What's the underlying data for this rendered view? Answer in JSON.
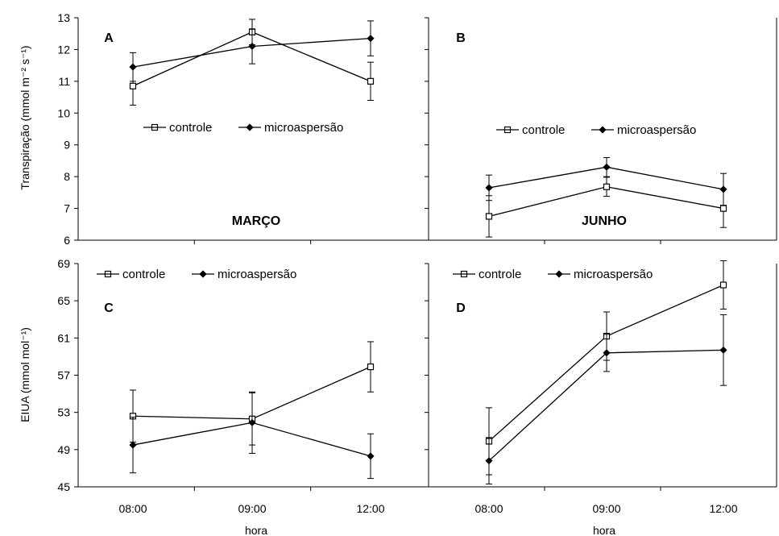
{
  "figure": {
    "xlabel": "hora",
    "ylabel_top": "Transpiração (mmol m⁻² s⁻¹)",
    "ylabel_bottom": "EIUA (mmol mol⁻¹)",
    "month_march": "MARÇO",
    "month_june": "JUNHO"
  },
  "colors": {
    "axis": "#000000",
    "line": "#000000",
    "open_marker_fill": "#ffffff",
    "closed_marker_fill": "#000000"
  },
  "chart_data": [
    {
      "panel": "A",
      "type": "line",
      "categories": [
        "08:00",
        "09:00",
        "12:00"
      ],
      "ylim": [
        6,
        13
      ],
      "yticks": [
        6,
        7,
        8,
        9,
        10,
        11,
        12,
        13
      ],
      "legend": "middle",
      "series": [
        {
          "name": "controle",
          "marker": "open-square",
          "values": [
            10.85,
            12.55,
            11.0
          ],
          "err": [
            0.6,
            0.4,
            0.6
          ]
        },
        {
          "name": "microaspersão",
          "marker": "filled-diamond",
          "values": [
            11.45,
            12.1,
            12.35
          ],
          "err": [
            0.45,
            0.55,
            0.55
          ]
        }
      ]
    },
    {
      "panel": "B",
      "type": "line",
      "categories": [
        "08:00",
        "09:00",
        "12:00"
      ],
      "ylim": [
        6,
        13
      ],
      "legend": "middle",
      "series": [
        {
          "name": "controle",
          "marker": "open-square",
          "values": [
            6.75,
            7.68,
            7.0
          ],
          "err": [
            0.65,
            0.3,
            0.6
          ]
        },
        {
          "name": "microaspersão",
          "marker": "filled-diamond",
          "values": [
            7.65,
            8.3,
            7.6
          ],
          "err": [
            0.4,
            0.3,
            0.5
          ]
        }
      ]
    },
    {
      "panel": "C",
      "type": "line",
      "categories": [
        "08:00",
        "09:00",
        "12:00"
      ],
      "ylim": [
        45,
        69
      ],
      "yticks": [
        45,
        49,
        53,
        57,
        61,
        65,
        69
      ],
      "legend": "top",
      "series": [
        {
          "name": "controle",
          "marker": "open-square",
          "values": [
            52.6,
            52.3,
            57.9
          ],
          "err": [
            2.8,
            2.8,
            2.7
          ]
        },
        {
          "name": "microaspersão",
          "marker": "filled-diamond",
          "values": [
            49.5,
            51.9,
            48.3
          ],
          "err": [
            3.0,
            3.3,
            2.4
          ]
        }
      ]
    },
    {
      "panel": "D",
      "type": "line",
      "categories": [
        "08:00",
        "09:00",
        "12:00"
      ],
      "ylim": [
        45,
        69
      ],
      "legend": "top",
      "series": [
        {
          "name": "controle",
          "marker": "open-square",
          "values": [
            49.9,
            61.2,
            66.7
          ],
          "err": [
            3.6,
            2.6,
            2.6
          ]
        },
        {
          "name": "microaspersão",
          "marker": "filled-diamond",
          "values": [
            47.8,
            59.4,
            59.7
          ],
          "err": [
            2.5,
            2.0,
            3.8
          ]
        }
      ]
    }
  ]
}
